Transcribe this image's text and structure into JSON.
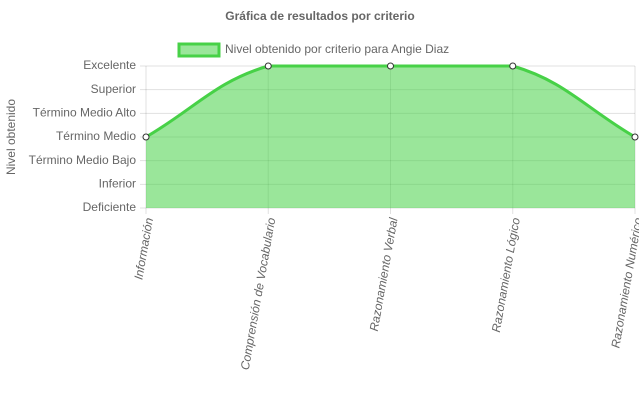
{
  "chart_data": {
    "type": "line",
    "title": "Gráfica de resultados por criterio",
    "y_label": "Nivel obtenido",
    "categories": [
      "Información",
      "Comprensión de Vocabulario",
      "Razonamiento Verbal",
      "Razonamiento Lógico",
      "Razonamiento Numérico"
    ],
    "series": [
      {
        "name": "Nivel obtenido por criterio para Angie Diaz",
        "color": "#47d147",
        "values": [
          4,
          7,
          7,
          7,
          4
        ]
      }
    ],
    "ylim": [
      1,
      7
    ],
    "yticks": [
      {
        "value": 1,
        "label": "Deficiente"
      },
      {
        "value": 2,
        "label": "Inferior"
      },
      {
        "value": 3,
        "label": "Término Medio Bajo"
      },
      {
        "value": 4,
        "label": "Término Medio"
      },
      {
        "value": 5,
        "label": "Término Medio Alto"
      },
      {
        "value": 6,
        "label": "Superior"
      },
      {
        "value": 7,
        "label": "Excelente"
      }
    ],
    "grid": true,
    "fill": true,
    "legend": "top"
  }
}
